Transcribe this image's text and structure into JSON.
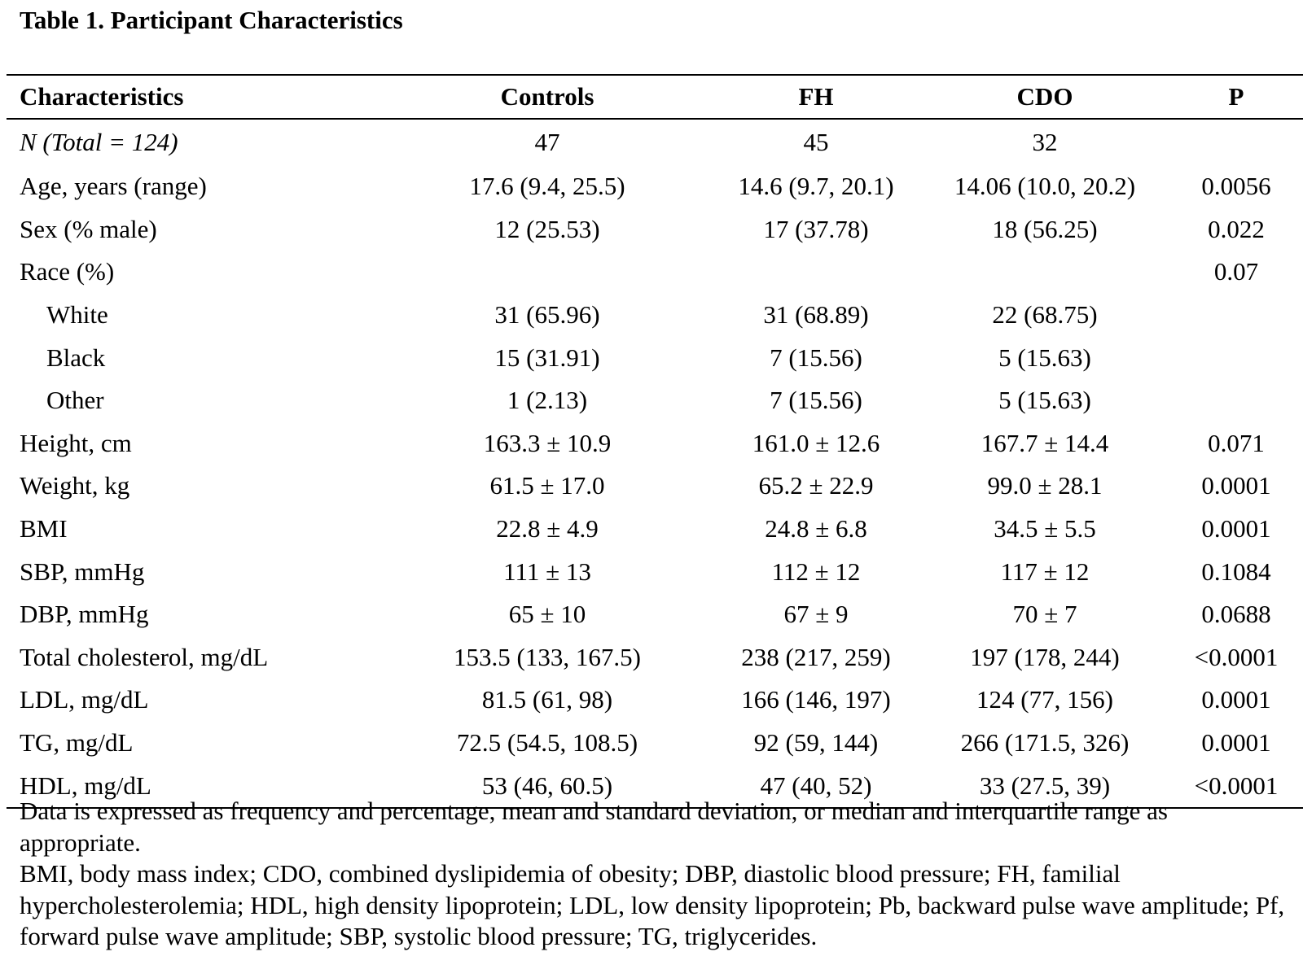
{
  "title": "Table 1. Participant Characteristics",
  "table": {
    "headers": [
      "Characteristics",
      "Controls",
      "FH",
      "CDO",
      "P"
    ],
    "rows": [
      {
        "label": "N (Total = 124)",
        "controls": "47",
        "fh": "45",
        "cdo": "32",
        "p": "",
        "italic": true,
        "indent": false
      },
      {
        "label": "Age, years (range)",
        "controls": "17.6 (9.4, 25.5)",
        "fh": "14.6 (9.7, 20.1)",
        "cdo": "14.06 (10.0, 20.2)",
        "p": "0.0056",
        "italic": false,
        "indent": false
      },
      {
        "label": "Sex (% male)",
        "controls": "12 (25.53)",
        "fh": "17 (37.78)",
        "cdo": "18 (56.25)",
        "p": "0.022",
        "italic": false,
        "indent": false
      },
      {
        "label": "Race (%)",
        "controls": "",
        "fh": "",
        "cdo": "",
        "p": "0.07",
        "italic": false,
        "indent": false
      },
      {
        "label": "White",
        "controls": "31 (65.96)",
        "fh": "31 (68.89)",
        "cdo": "22 (68.75)",
        "p": "",
        "italic": false,
        "indent": true
      },
      {
        "label": "Black",
        "controls": "15 (31.91)",
        "fh": "7 (15.56)",
        "cdo": "5 (15.63)",
        "p": "",
        "italic": false,
        "indent": true
      },
      {
        "label": "Other",
        "controls": "1 (2.13)",
        "fh": "7 (15.56)",
        "cdo": "5 (15.63)",
        "p": "",
        "italic": false,
        "indent": true
      },
      {
        "label": "Height, cm",
        "controls": "163.3 ± 10.9",
        "fh": "161.0 ± 12.6",
        "cdo": "167.7 ± 14.4",
        "p": "0.071",
        "italic": false,
        "indent": false
      },
      {
        "label": "Weight, kg",
        "controls": "61.5 ± 17.0",
        "fh": "65.2 ± 22.9",
        "cdo": "99.0 ± 28.1",
        "p": "0.0001",
        "italic": false,
        "indent": false
      },
      {
        "label": "BMI",
        "controls": "22.8 ± 4.9",
        "fh": "24.8 ± 6.8",
        "cdo": "34.5 ± 5.5",
        "p": "0.0001",
        "italic": false,
        "indent": false
      },
      {
        "label": "SBP, mmHg",
        "controls": "111 ± 13",
        "fh": "112 ± 12",
        "cdo": "117 ± 12",
        "p": "0.1084",
        "italic": false,
        "indent": false
      },
      {
        "label": "DBP, mmHg",
        "controls": "65 ± 10",
        "fh": "67 ± 9",
        "cdo": "70 ± 7",
        "p": "0.0688",
        "italic": false,
        "indent": false
      },
      {
        "label": "Total cholesterol, mg/dL",
        "controls": "153.5 (133, 167.5)",
        "fh": "238 (217, 259)",
        "cdo": "197 (178, 244)",
        "p": "<0.0001",
        "italic": false,
        "indent": false
      },
      {
        "label": "LDL, mg/dL",
        "controls": "81.5 (61, 98)",
        "fh": "166 (146, 197)",
        "cdo": "124 (77, 156)",
        "p": "0.0001",
        "italic": false,
        "indent": false
      },
      {
        "label": "TG, mg/dL",
        "controls": "72.5 (54.5, 108.5)",
        "fh": "92 (59, 144)",
        "cdo": "266 (171.5, 326)",
        "p": "0.0001",
        "italic": false,
        "indent": false
      },
      {
        "label": "HDL, mg/dL",
        "controls": "53 (46, 60.5)",
        "fh": "47 (40, 52)",
        "cdo": "33 (27.5, 39)",
        "p": "<0.0001",
        "italic": false,
        "indent": false
      }
    ]
  },
  "footnotes": [
    "Data is expressed as frequency and percentage, mean and standard deviation, or median and interquartile range as appropriate.",
    "BMI, body mass index; CDO, combined dyslipidemia of obesity; DBP, diastolic blood pressure; FH, familial hypercholesterolemia; HDL, high density lipoprotein; LDL, low density lipoprotein; Pb, backward pulse wave amplitude; Pf, forward pulse wave amplitude; SBP, systolic blood pressure; TG, triglycerides."
  ]
}
